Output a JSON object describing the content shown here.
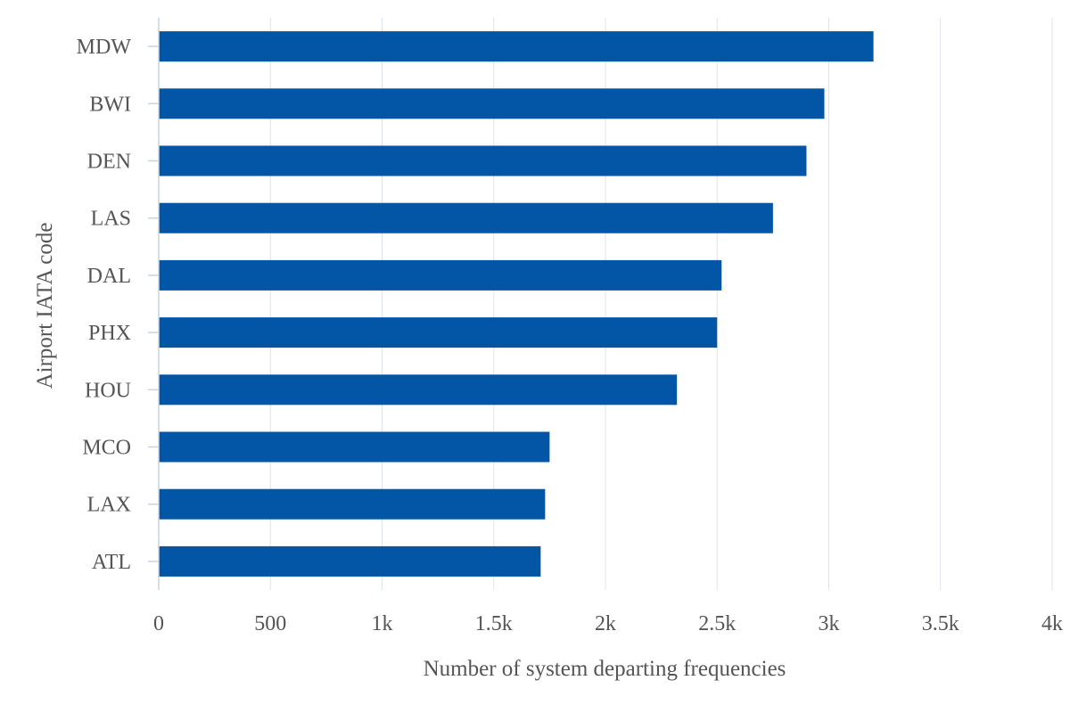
{
  "chart_data": {
    "type": "bar",
    "orientation": "horizontal",
    "categories": [
      "MDW",
      "BWI",
      "DEN",
      "LAS",
      "DAL",
      "PHX",
      "HOU",
      "MCO",
      "LAX",
      "ATL"
    ],
    "series": [
      {
        "values": [
          3200,
          2980,
          2900,
          2750,
          2520,
          2500,
          2320,
          1750,
          1730,
          1710
        ]
      }
    ],
    "xlabel": "Number of system departing frequencies",
    "ylabel": "Airport IATA code",
    "xlim": [
      0,
      4000
    ],
    "x_ticks": [
      0,
      500,
      1000,
      1500,
      2000,
      2500,
      3000,
      3500,
      4000
    ],
    "x_tick_labels": [
      "0",
      "500",
      "1k",
      "1.5k",
      "2k",
      "2.5k",
      "3k",
      "3.5k",
      "4k"
    ],
    "grid": "vertical",
    "legend": "none",
    "colors": {
      "bar": "#0356a6",
      "grid": "#dde3ec",
      "axis": "#c9d3e3",
      "text": "#555555"
    }
  }
}
